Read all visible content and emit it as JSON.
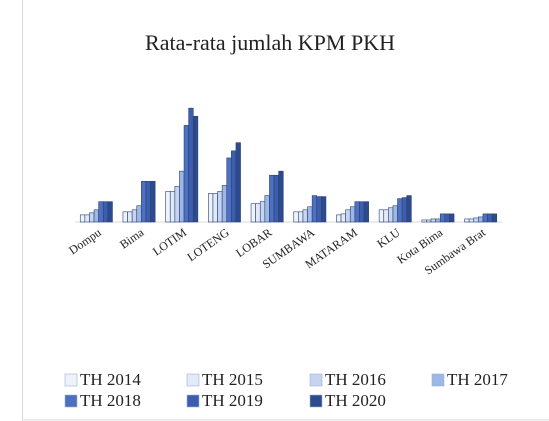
{
  "chart_data": {
    "type": "bar",
    "title": "Rata-rata jumlah KPM PKH",
    "categories": [
      "Dompu",
      "Bima",
      "LOTIM",
      "LOTENG",
      "LOBAR",
      "SUMBAWA",
      "MATARAM",
      "KLU",
      "Kota Bima",
      "Sumbawa Brat"
    ],
    "series": [
      {
        "name": "TH 2014",
        "color": "#eef3fb",
        "values": [
          7,
          10,
          30,
          28,
          18,
          10,
          7,
          12,
          2,
          3
        ]
      },
      {
        "name": "TH 2015",
        "color": "#e2eaf7",
        "values": [
          7,
          10,
          30,
          28,
          18,
          10,
          8,
          12,
          2,
          3
        ]
      },
      {
        "name": "TH 2016",
        "color": "#c6d4ef",
        "values": [
          9,
          12,
          35,
          30,
          20,
          12,
          12,
          14,
          3,
          4
        ]
      },
      {
        "name": "TH 2017",
        "color": "#9db8e6",
        "values": [
          12,
          16,
          50,
          36,
          26,
          15,
          15,
          16,
          3,
          5
        ]
      },
      {
        "name": "TH 2018",
        "color": "#4e70c0",
        "values": [
          20,
          40,
          95,
          63,
          46,
          26,
          20,
          23,
          8,
          8
        ]
      },
      {
        "name": "TH 2019",
        "color": "#3d5eae",
        "values": [
          20,
          40,
          112,
          70,
          46,
          25,
          20,
          24,
          8,
          8
        ]
      },
      {
        "name": "TH 2020",
        "color": "#2d4a8c",
        "values": [
          20,
          40,
          104,
          78,
          50,
          25,
          20,
          26,
          8,
          8
        ]
      }
    ],
    "ylim": [
      0,
      120
    ]
  }
}
